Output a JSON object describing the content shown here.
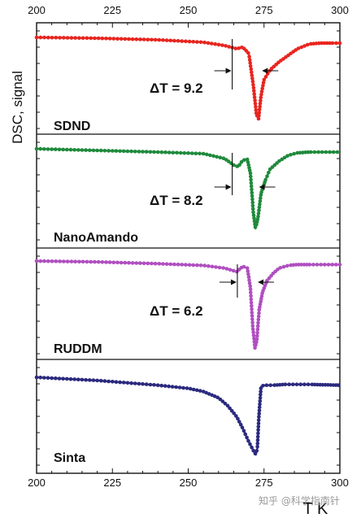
{
  "chart_data": {
    "type": "line",
    "xlabel": "T K",
    "ylabel": "DSC, signal",
    "xlim": [
      200,
      300
    ],
    "x_ticks": [
      200,
      225,
      250,
      275,
      300
    ],
    "colors": {
      "SDND": "#e8251f",
      "NanoAmando": "#1f8a3c",
      "RUDDM": "#b04fc0",
      "Sinta": "#2b2a7e"
    },
    "series": [
      {
        "name": "SDND",
        "delta_t_label": "ΔT = 9.2",
        "marker_left_x": 264.5,
        "marker_right_x": 273.8,
        "x": [
          200,
          220,
          240,
          255,
          262,
          266,
          268,
          270,
          271.5,
          272.5,
          273.2,
          274,
          275,
          277,
          280,
          283,
          286,
          290,
          294,
          298,
          300
        ],
        "y": [
          0.0,
          -0.01,
          -0.03,
          -0.06,
          -0.1,
          -0.14,
          -0.12,
          -0.2,
          -0.6,
          -0.95,
          -1.0,
          -0.72,
          -0.52,
          -0.4,
          -0.3,
          -0.22,
          -0.14,
          -0.08,
          -0.07,
          -0.07,
          -0.07
        ]
      },
      {
        "name": "NanoAmando",
        "delta_t_label": "ΔT = 8.2",
        "marker_left_x": 264.5,
        "marker_right_x": 272.8,
        "x": [
          200,
          220,
          240,
          255,
          262,
          265,
          266.5,
          268,
          269.5,
          270.5,
          271.5,
          272.2,
          273,
          274,
          275.5,
          277,
          280,
          283,
          286,
          290,
          295,
          300
        ],
        "y": [
          0.0,
          -0.02,
          -0.04,
          -0.06,
          -0.12,
          -0.2,
          -0.22,
          -0.14,
          -0.13,
          -0.3,
          -0.8,
          -0.98,
          -0.85,
          -0.55,
          -0.38,
          -0.25,
          -0.15,
          -0.08,
          -0.05,
          -0.04,
          -0.04,
          -0.04
        ]
      },
      {
        "name": "RUDDM",
        "delta_t_label": "ΔT = 6.2",
        "marker_left_x": 266.2,
        "marker_right_x": 272.4,
        "x": [
          200,
          220,
          240,
          255,
          262,
          266,
          268,
          269.5,
          270.5,
          271.3,
          272,
          272.6,
          273.4,
          274.5,
          276,
          278,
          280,
          283,
          286,
          290,
          295,
          300
        ],
        "y": [
          0.0,
          -0.01,
          -0.03,
          -0.05,
          -0.08,
          -0.12,
          -0.06,
          -0.08,
          -0.3,
          -0.75,
          -0.98,
          -0.9,
          -0.55,
          -0.35,
          -0.22,
          -0.14,
          -0.08,
          -0.05,
          -0.04,
          -0.04,
          -0.04,
          -0.04
        ]
      },
      {
        "name": "Sinta",
        "x": [
          200,
          210,
          220,
          230,
          240,
          250,
          255,
          260,
          263,
          266,
          268,
          270,
          271.5,
          272.3,
          272.8,
          273.3,
          274,
          275,
          278,
          282,
          290,
          300
        ],
        "y": [
          0.0,
          -0.02,
          -0.04,
          -0.07,
          -0.1,
          -0.14,
          -0.18,
          -0.26,
          -0.36,
          -0.5,
          -0.65,
          -0.82,
          -0.93,
          -0.98,
          -0.9,
          -0.5,
          -0.12,
          -0.1,
          -0.1,
          -0.09,
          -0.09,
          -0.1
        ]
      }
    ]
  },
  "watermark": "知乎 @科学指南针"
}
